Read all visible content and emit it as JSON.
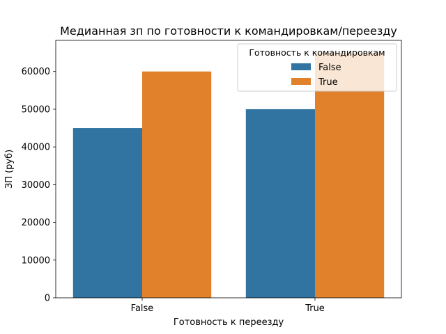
{
  "chart_data": {
    "type": "bar",
    "title": "Медианная зп по готовности к командировкам/переезду",
    "xlabel": "Готовность к переезду",
    "ylabel": "ЗП (руб)",
    "categories": [
      "False",
      "True"
    ],
    "series": [
      {
        "name": "False",
        "values": [
          45000,
          50000
        ],
        "color": "#3274a1"
      },
      {
        "name": "True",
        "values": [
          60000,
          65000
        ],
        "color": "#e1812c"
      }
    ],
    "ylim": [
      0,
      68250
    ],
    "yticks": [
      0,
      10000,
      20000,
      30000,
      40000,
      50000,
      60000
    ],
    "legend": {
      "title": "Готовность к командировкам",
      "placement": "top-right"
    },
    "grid": false
  }
}
